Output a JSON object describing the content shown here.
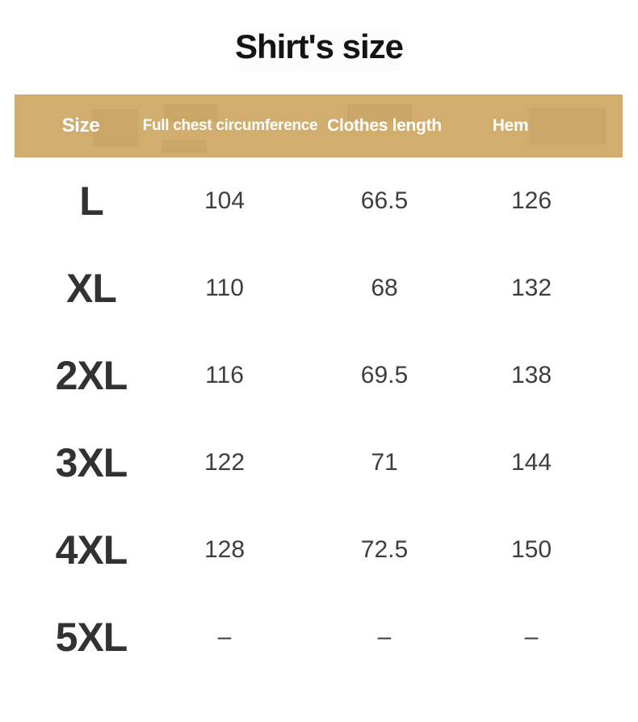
{
  "title": "Shirt's size",
  "colors": {
    "page_bg": "#ffffff",
    "header_bg": "#d1ad6e",
    "header_text": "#ffffff",
    "title_text": "#141414",
    "size_text": "#323232",
    "value_text": "#3e3e3e"
  },
  "table": {
    "headers": [
      "Size",
      "Full chest circumference",
      "Clothes length",
      "Hem"
    ],
    "rows": [
      {
        "size": "L",
        "chest": "104",
        "length": "66.5",
        "hem": "126"
      },
      {
        "size": "XL",
        "chest": "110",
        "length": "68",
        "hem": "132"
      },
      {
        "size": "2XL",
        "chest": "116",
        "length": "69.5",
        "hem": "138"
      },
      {
        "size": "3XL",
        "chest": "122",
        "length": "71",
        "hem": "144"
      },
      {
        "size": "4XL",
        "chest": "128",
        "length": "72.5",
        "hem": "150"
      },
      {
        "size": "5XL",
        "chest": "–",
        "length": "–",
        "hem": "–"
      }
    ]
  },
  "chart_data": {
    "type": "table",
    "title": "Shirt's size",
    "columns": [
      "Size",
      "Full chest circumference",
      "Clothes length",
      "Hem"
    ],
    "rows": [
      [
        "L",
        "104",
        "66.5",
        "126"
      ],
      [
        "XL",
        "110",
        "68",
        "132"
      ],
      [
        "2XL",
        "116",
        "69.5",
        "138"
      ],
      [
        "3XL",
        "122",
        "71",
        "144"
      ],
      [
        "4XL",
        "128",
        "72.5",
        "150"
      ],
      [
        "5XL",
        "–",
        "–",
        "–"
      ]
    ],
    "units_note": "",
    "layout": {
      "header_fill": "#d1ad6e",
      "header_text_color": "#ffffff",
      "gridlines": false
    }
  }
}
